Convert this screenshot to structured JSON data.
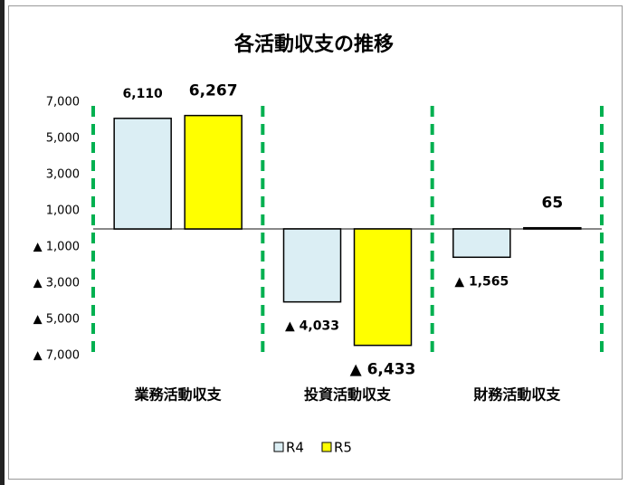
{
  "chart_data": {
    "type": "bar",
    "title": "各活動収支の推移",
    "categories": [
      "業務活動収支",
      "投資活動収支",
      "財務活動収支"
    ],
    "series": [
      {
        "name": "R4",
        "color": "#dbeef4",
        "label_color": "#000000",
        "values": [
          6110,
          -4033,
          -1565
        ],
        "value_labels": [
          "6,110",
          "▲ 4,033",
          "▲ 1,565"
        ]
      },
      {
        "name": "R5",
        "color": "#ffff00",
        "label_color": "#ff0000",
        "values": [
          6267,
          -6433,
          65
        ],
        "value_labels": [
          "6,267",
          "▲ 6,433",
          "65"
        ]
      }
    ],
    "ylim": [
      -7000,
      7000
    ],
    "yticks": [
      {
        "value": 7000,
        "label": "7,000"
      },
      {
        "value": 5000,
        "label": "5,000"
      },
      {
        "value": 3000,
        "label": "3,000"
      },
      {
        "value": 1000,
        "label": "1,000"
      },
      {
        "value": -1000,
        "label": "▲ 1,000"
      },
      {
        "value": -3000,
        "label": "▲ 3,000"
      },
      {
        "value": -5000,
        "label": "▲ 5,000"
      },
      {
        "value": -7000,
        "label": "▲ 7,000"
      }
    ],
    "grid": false,
    "legend": "bottom"
  }
}
